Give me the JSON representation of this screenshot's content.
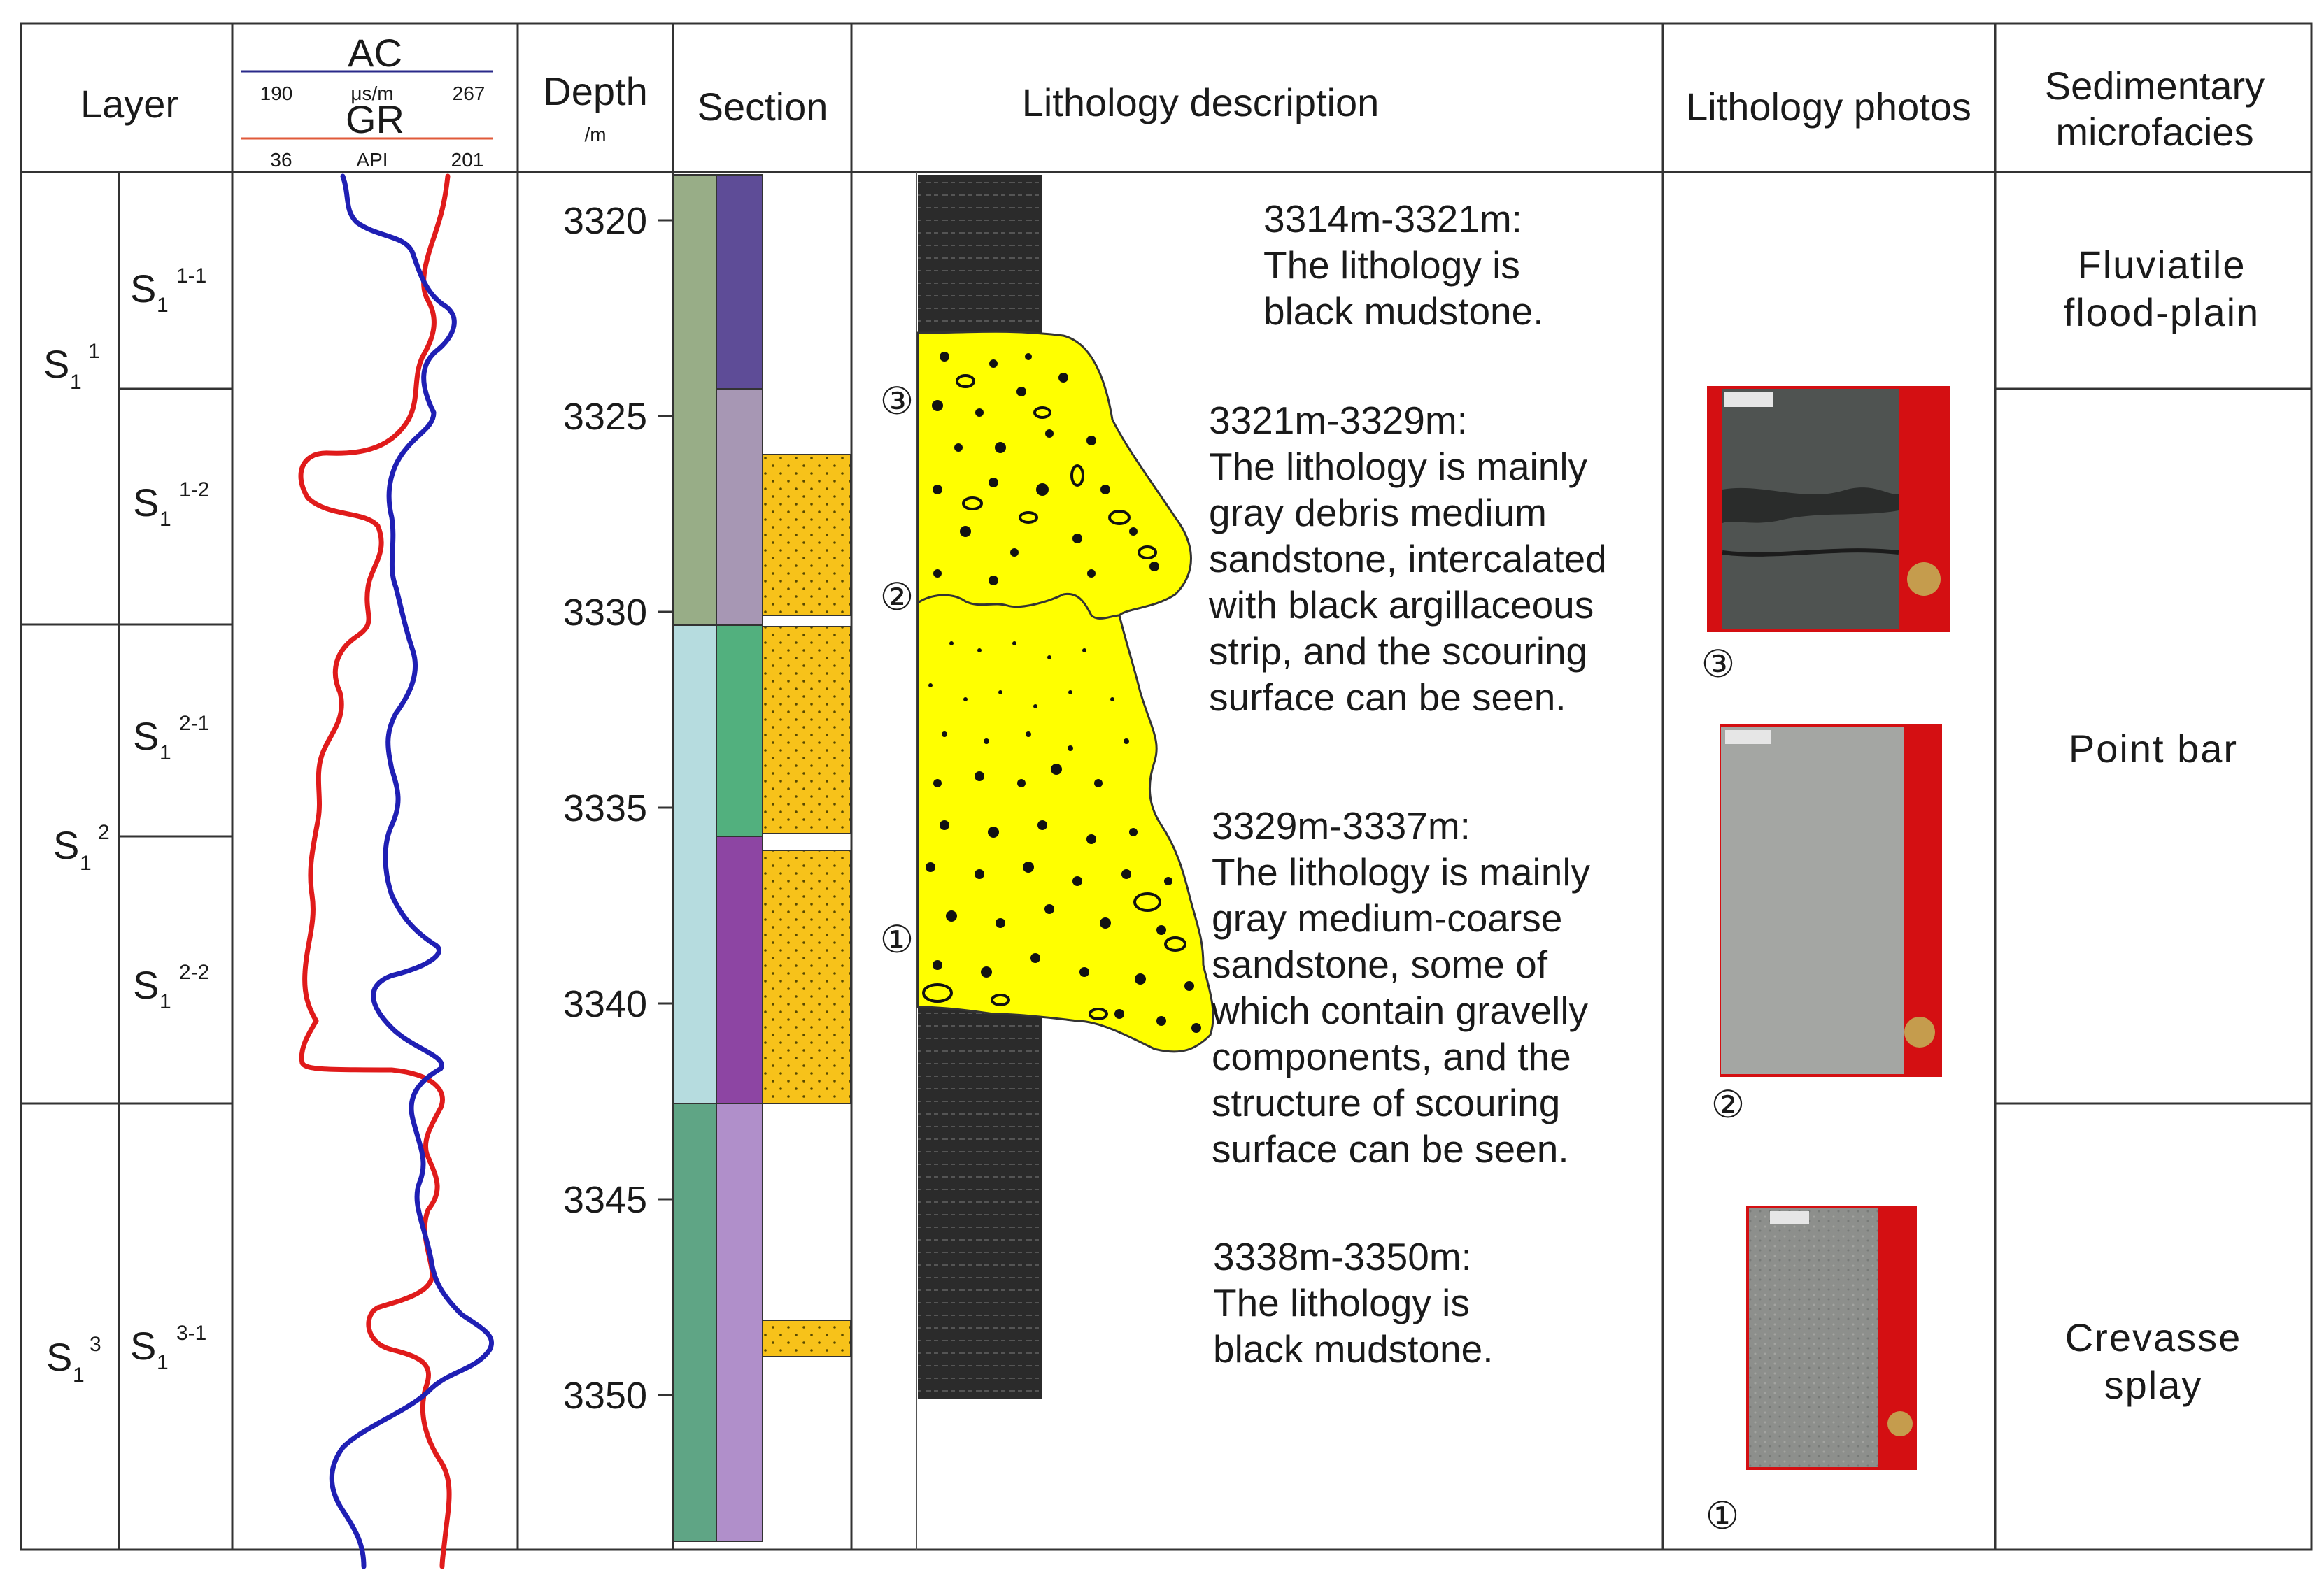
{
  "headers": {
    "layer": "Layer",
    "ac": "AC",
    "ac_min": "190",
    "ac_unit": "μs/m",
    "ac_max": "267",
    "gr": "GR",
    "gr_min": "36",
    "gr_unit": "API",
    "gr_max": "201",
    "depth": "Depth",
    "depth_unit": "/m",
    "section": "Section",
    "lithology_description": "Lithology description",
    "lithology_photos": "Lithology photos",
    "facies_line1": "Sedimentary",
    "facies_line2": "microfacies"
  },
  "layers": {
    "s11": {
      "base": "S",
      "sub": "1",
      "sup": "1"
    },
    "s12": {
      "base": "S",
      "sub": "1",
      "sup": "2"
    },
    "s13": {
      "base": "S",
      "sub": "1",
      "sup": "3"
    },
    "s11_1": {
      "base": "S",
      "sub": "1",
      "sup": "1-1"
    },
    "s11_2": {
      "base": "S",
      "sub": "1",
      "sup": "1-2"
    },
    "s12_1": {
      "base": "S",
      "sub": "1",
      "sup": "2-1"
    },
    "s12_2": {
      "base": "S",
      "sub": "1",
      "sup": "2-2"
    },
    "s13_1": {
      "base": "S",
      "sub": "1",
      "sup": "3-1"
    }
  },
  "depth_ticks": [
    "3320",
    "3325",
    "3330",
    "3335",
    "3340",
    "3345",
    "3350"
  ],
  "descriptions": {
    "d1": [
      "3314m-3321m:",
      "The lithology is",
      "black mudstone."
    ],
    "d2": [
      "3321m-3329m:",
      "The lithology is mainly",
      "gray debris medium",
      "sandstone, intercalated",
      "with black argillaceous",
      "strip, and the scouring",
      "surface can be seen."
    ],
    "d3": [
      "3329m-3337m:",
      "The lithology is  mainly",
      " gray medium-coarse",
      "sandstone, some of",
      "which contain  gravelly",
      " components, and the",
      "structure of scouring",
      "surface can be seen."
    ],
    "d4": [
      "3338m-3350m:",
      "The lithology is",
      "black mudstone."
    ]
  },
  "markers": {
    "m1": "①",
    "m2": "②",
    "m3": "③"
  },
  "photo_labels": {
    "p1": "③",
    "p2": "②",
    "p3": "①"
  },
  "facies": {
    "f1_line1": "Fluviatile",
    "f1_line2": "flood-plain",
    "f2": "Point bar",
    "f3_line1": "Crevasse",
    "f3_line2": "splay"
  },
  "colors": {
    "ac_curve": "#1f1fb4",
    "gr_curve": "#e01b1b",
    "sandstone": "#f7c21a",
    "core_sand": "#ffff00",
    "mudstone": "#2a2a2a",
    "photo_bg": "#d40f12"
  }
}
